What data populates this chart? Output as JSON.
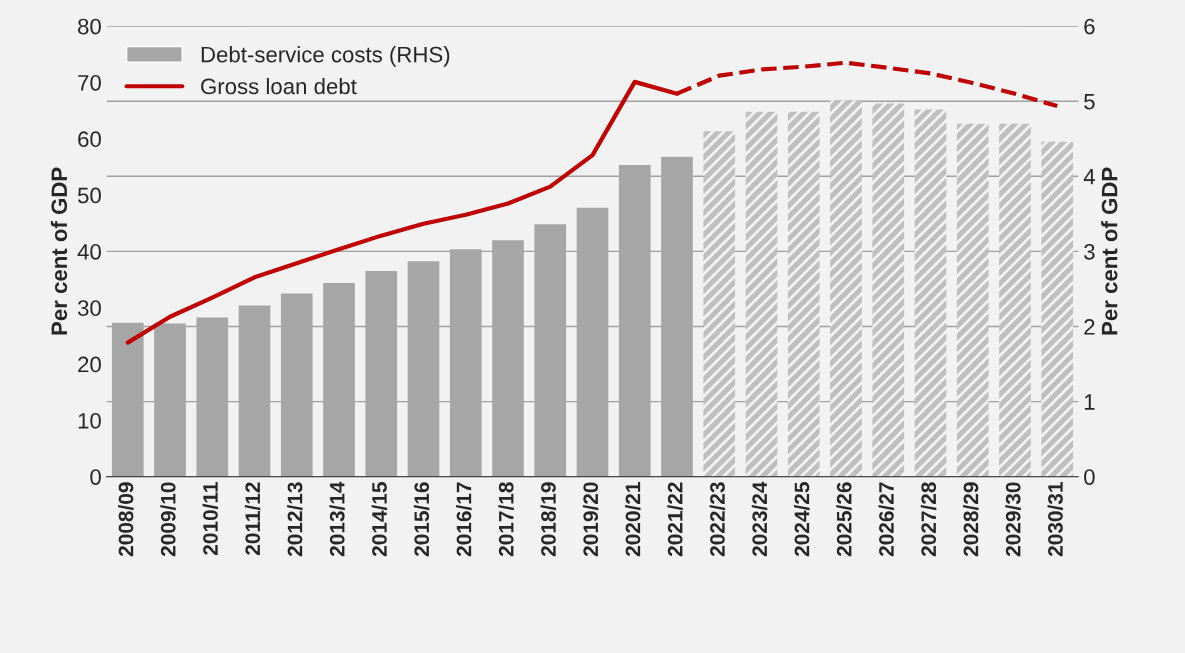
{
  "chart_data": {
    "type": "bar",
    "ylabel": "Per cent of GDP",
    "y2label": "Per cent of GDP",
    "categories": [
      "2008/09",
      "2009/10",
      "2010/11",
      "2011/12",
      "2012/13",
      "2013/14",
      "2014/15",
      "2015/16",
      "2016/17",
      "2017/18",
      "2018/19",
      "2019/20",
      "2020/21",
      "2021/22",
      "2022/23",
      "2023/24",
      "2024/25",
      "2025/26",
      "2026/27",
      "2027/28",
      "2028/29",
      "2029/30",
      "2030/31"
    ],
    "series": [
      {
        "name": "Debt-service costs (RHS)",
        "axis": "y2",
        "color": "#a6a6a6",
        "values": [
          2.05,
          2.04,
          2.12,
          2.28,
          2.44,
          2.58,
          2.74,
          2.87,
          3.03,
          3.15,
          3.36,
          3.58,
          4.15,
          4.26,
          null,
          null,
          null,
          null,
          null,
          null,
          null,
          null,
          null
        ]
      },
      {
        "axis": "y2",
        "color": "#bfbfbf",
        "values": [
          null,
          null,
          null,
          null,
          null,
          null,
          null,
          null,
          null,
          null,
          null,
          null,
          null,
          null,
          4.6,
          4.86,
          4.86,
          5.01,
          4.97,
          4.89,
          4.7,
          4.7,
          4.46
        ]
      },
      {
        "name": "Gross loan debt",
        "type": "line",
        "axis": "y",
        "color": "#c00000",
        "line_style": "solid",
        "values": [
          23.8,
          28.4,
          31.8,
          35.4,
          37.9,
          40.4,
          42.8,
          44.9,
          46.5,
          48.5,
          51.5,
          57.1,
          70.1,
          68.0,
          null,
          null,
          null,
          null,
          null,
          null,
          null,
          null,
          null
        ]
      },
      {
        "type": "line",
        "axis": "y",
        "color": "#c00000",
        "line_style": "dashed",
        "values": [
          null,
          null,
          null,
          null,
          null,
          null,
          null,
          null,
          null,
          null,
          null,
          null,
          null,
          68.0,
          71.2,
          72.3,
          72.8,
          73.5,
          72.6,
          71.6,
          69.9,
          68.0,
          65.8
        ]
      }
    ],
    "ylim": [
      0,
      80
    ],
    "yticks": [
      0,
      10,
      20,
      30,
      40,
      50,
      60,
      70,
      80
    ],
    "y2lim": [
      0,
      6
    ],
    "y2ticks": [
      0,
      1,
      2,
      3,
      4,
      5,
      6
    ],
    "grid": "y",
    "legend": "top left"
  }
}
